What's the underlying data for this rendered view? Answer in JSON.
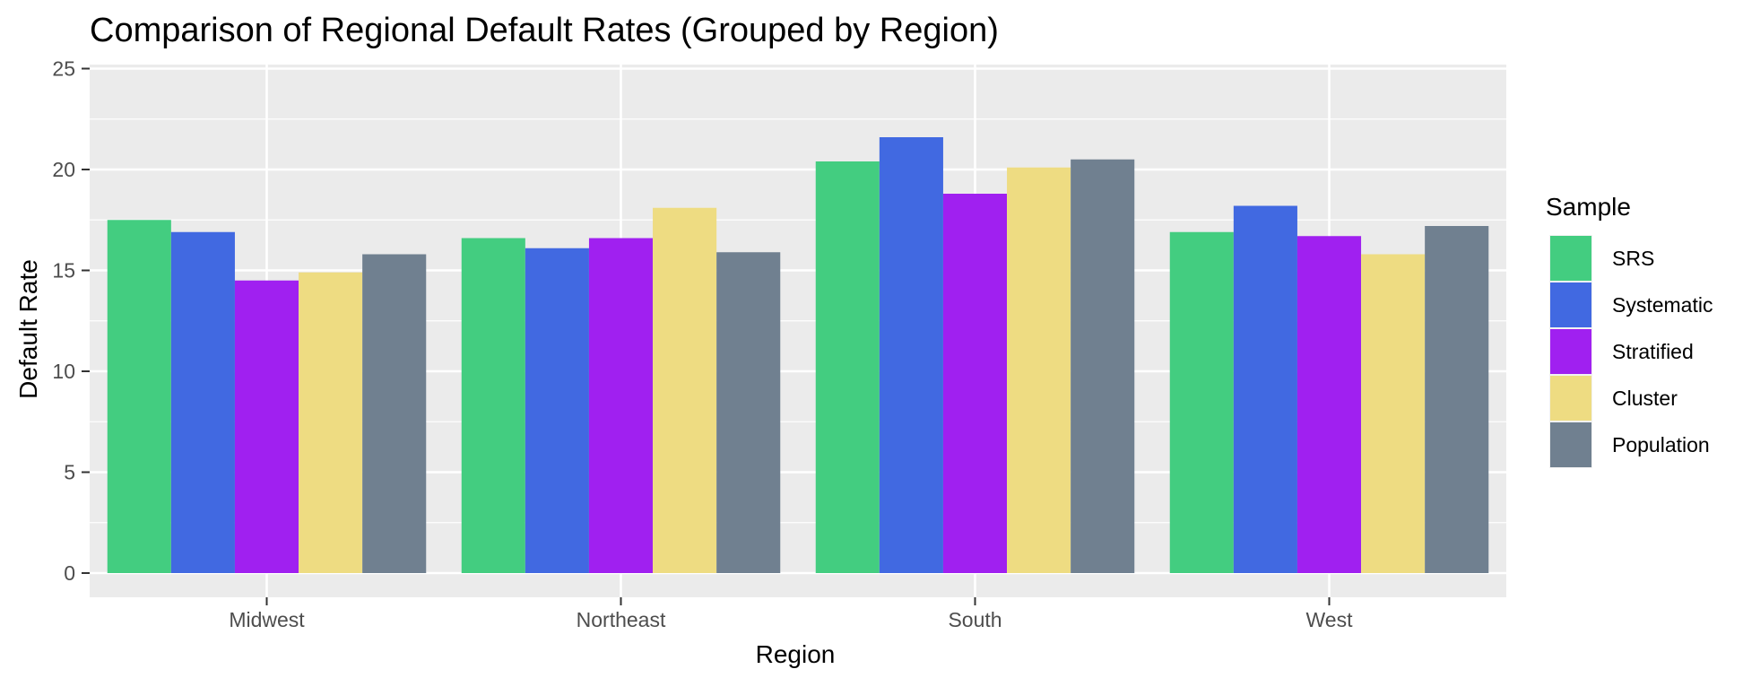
{
  "chart_data": {
    "type": "bar",
    "title": "Comparison of Regional Default Rates (Grouped by Region)",
    "xlabel": "Region",
    "ylabel": "Default Rate",
    "categories": [
      "Midwest",
      "Northeast",
      "South",
      "West"
    ],
    "ylim": [
      -1.2,
      25.2
    ],
    "yticks": [
      0,
      5,
      10,
      15,
      20,
      25
    ],
    "grid": true,
    "legend": {
      "title": "Sample",
      "position": "right"
    },
    "series": [
      {
        "name": "SRS",
        "color": "#43CD80",
        "values": [
          17.5,
          16.6,
          20.4,
          16.9
        ]
      },
      {
        "name": "Systematic",
        "color": "#4169E1",
        "values": [
          16.9,
          16.1,
          21.6,
          18.2
        ]
      },
      {
        "name": "Stratified",
        "color": "#A020F0",
        "values": [
          14.5,
          16.6,
          18.8,
          16.7
        ]
      },
      {
        "name": "Cluster",
        "color": "#EEDC82",
        "values": [
          14.9,
          18.1,
          20.1,
          15.8
        ]
      },
      {
        "name": "Population",
        "color": "#708090",
        "values": [
          15.8,
          15.9,
          20.5,
          17.2
        ]
      }
    ]
  }
}
